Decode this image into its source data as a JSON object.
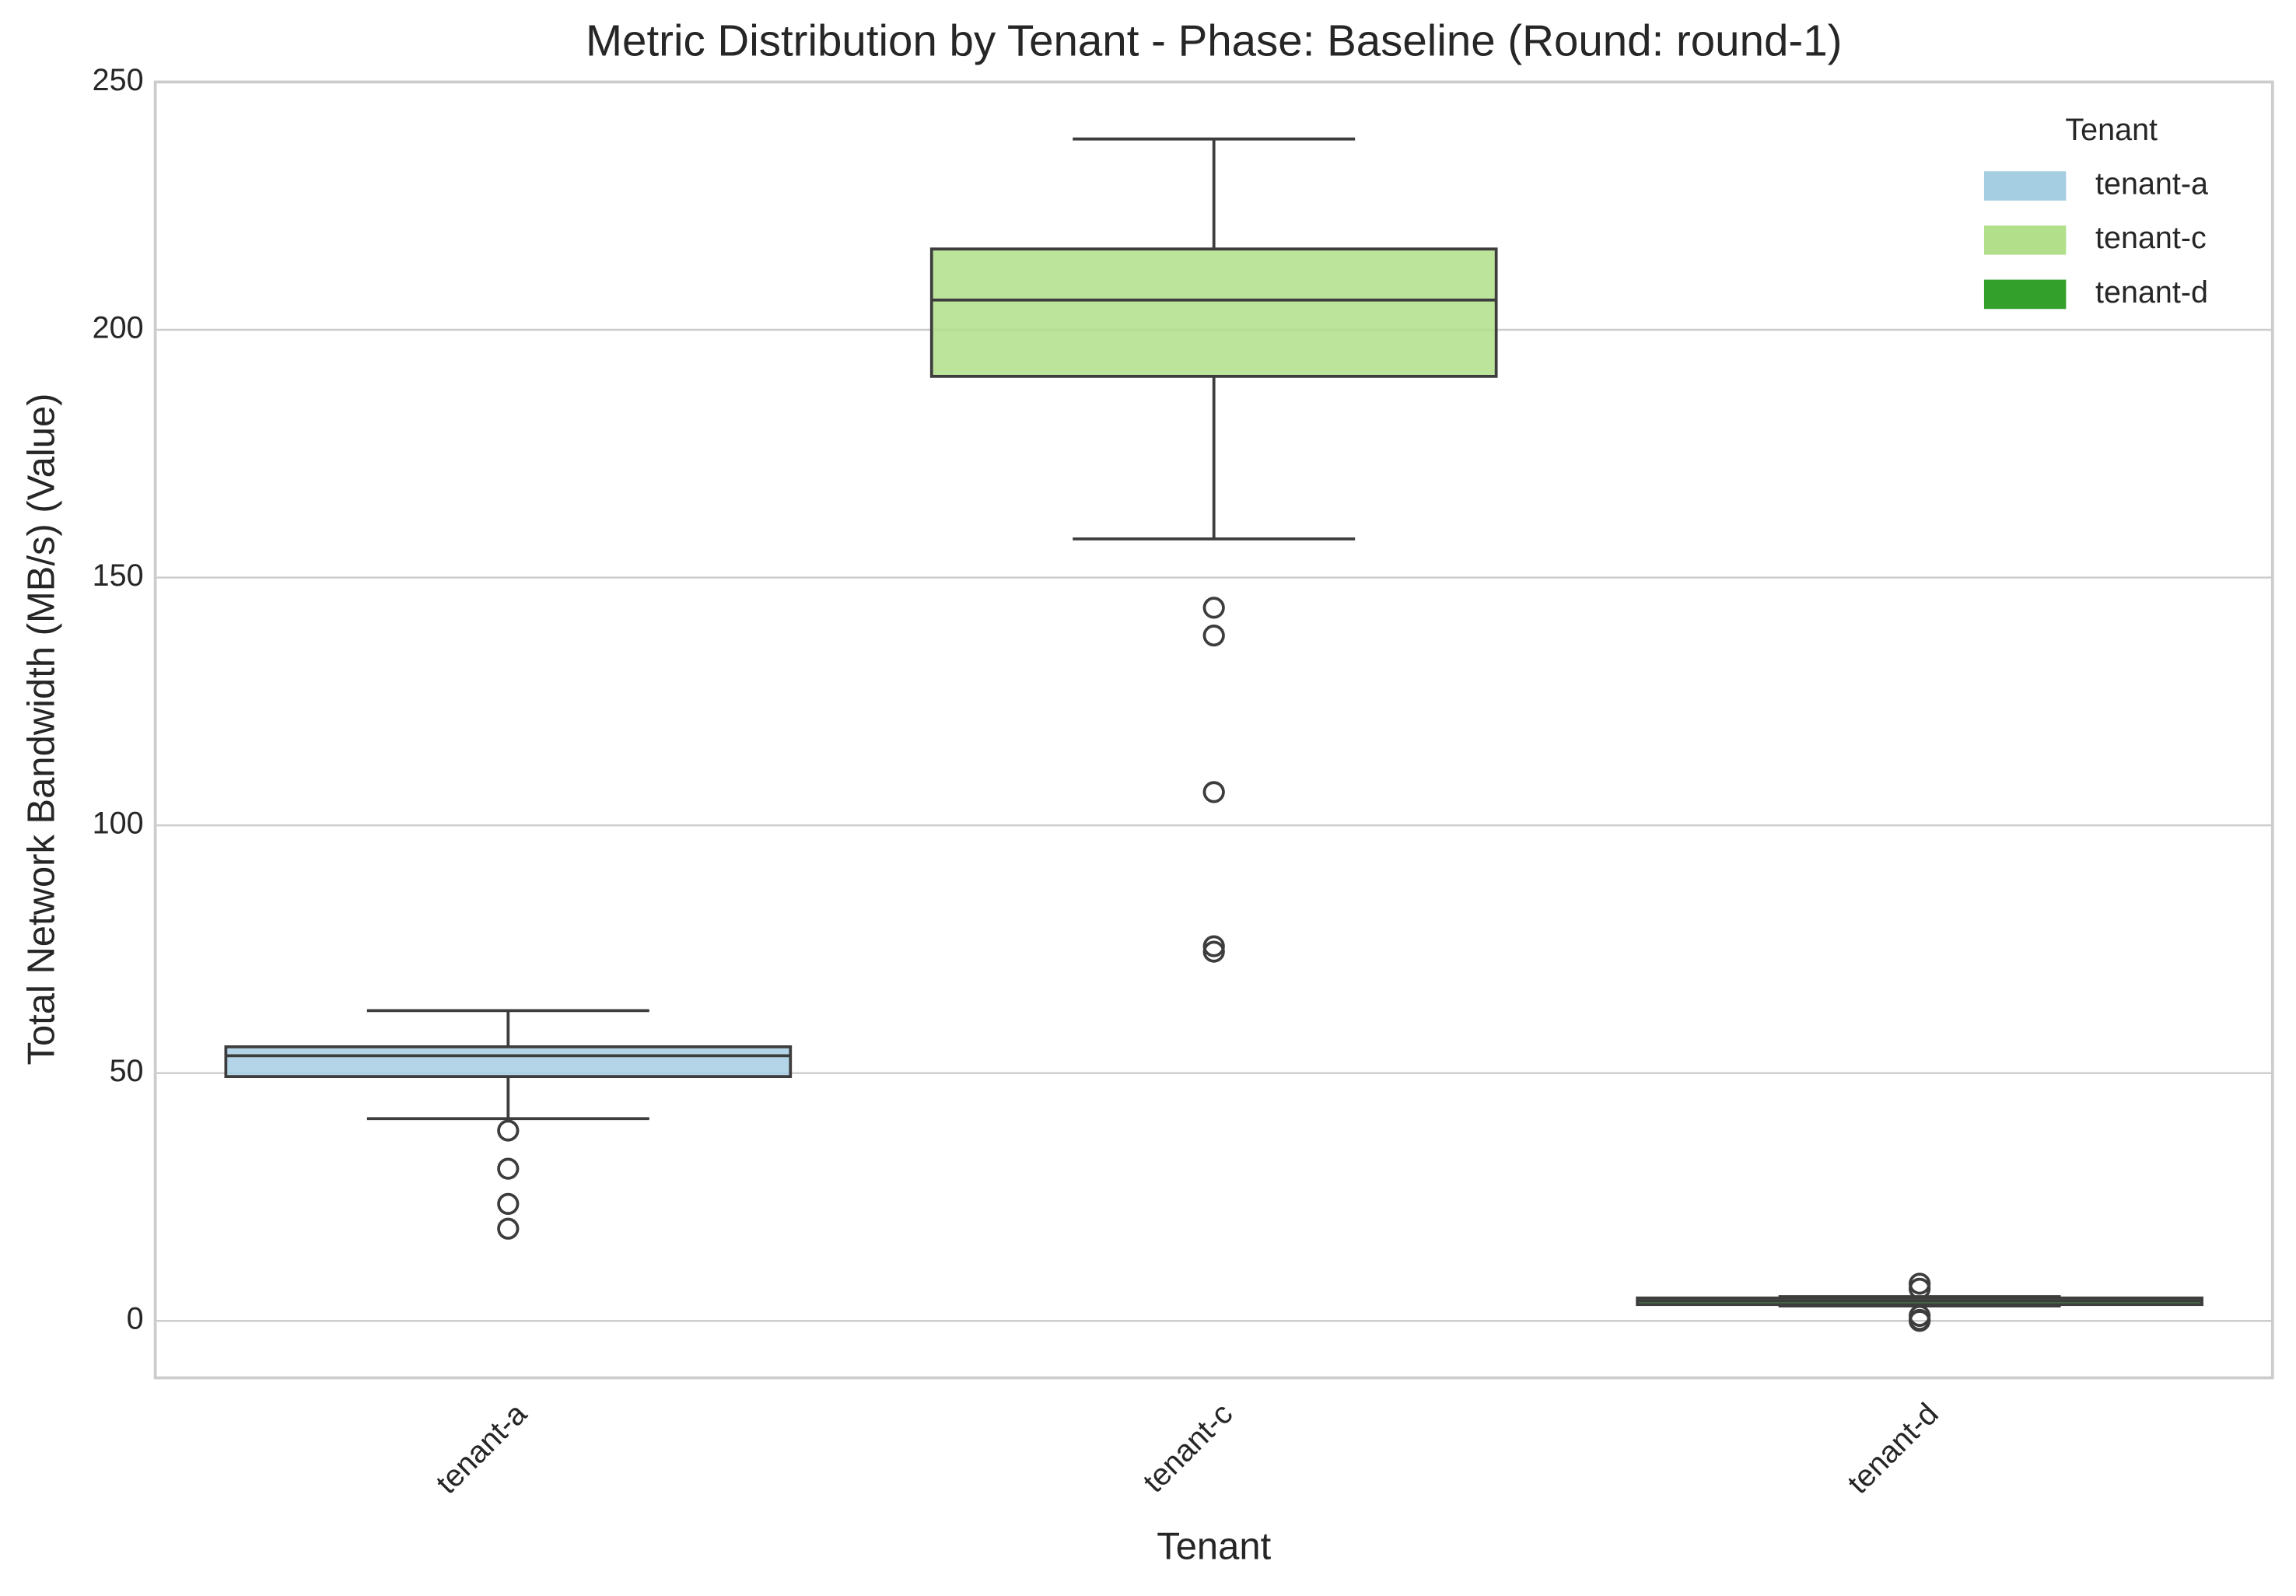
{
  "chart_data": {
    "type": "box",
    "title": "Metric Distribution by Tenant - Phase: Baseline (Round: round-1)",
    "xlabel": "Tenant",
    "ylabel": "Total Network Bandwidth (MB/s) (Value)",
    "categories": [
      "tenant-a",
      "tenant-c",
      "tenant-d"
    ],
    "series": [
      {
        "name": "tenant-a",
        "color": "#a6cee3",
        "low": 40.8,
        "q1": 49.3,
        "median": 53.5,
        "q3": 55.3,
        "high": 62.6,
        "outliers": [
          38.4,
          30.7,
          23.6,
          18.6
        ]
      },
      {
        "name": "tenant-c",
        "color": "#b2df8a",
        "low": 157.8,
        "q1": 190.6,
        "median": 206.0,
        "q3": 216.3,
        "high": 238.5,
        "outliers": [
          143.9,
          138.3,
          106.7,
          75.6,
          74.5
        ]
      },
      {
        "name": "tenant-d",
        "color": "#33a02c",
        "low": 3.0,
        "q1": 3.3,
        "median": 4.0,
        "q3": 4.6,
        "high": 4.9,
        "outliers": [
          7.5,
          6.5,
          1.0,
          0.2,
          0.0
        ]
      }
    ],
    "ylim": [
      -11.5,
      250
    ],
    "yticks": [
      0,
      50,
      100,
      150,
      200,
      250
    ],
    "grid": true,
    "legend": {
      "title": "Tenant",
      "position": "upper right"
    }
  }
}
